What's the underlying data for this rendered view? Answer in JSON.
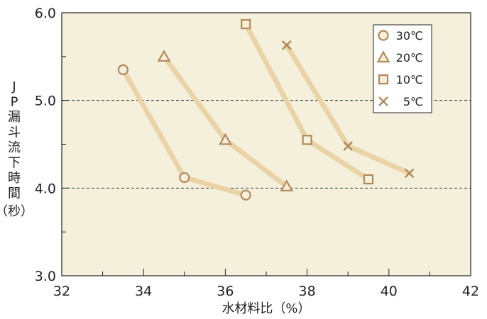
{
  "chart_data": {
    "type": "line",
    "xlabel": "水材料比（%）",
    "ylabel_vertical": "JP漏斗流下時間",
    "ylabel_unit": "（秒）",
    "xlim": [
      32,
      42
    ],
    "ylim": [
      3.0,
      6.0
    ],
    "x_ticks": [
      "32",
      "34",
      "36",
      "38",
      "40",
      "42"
    ],
    "y_ticks": [
      "3.0",
      "4.0",
      "5.0",
      "6.0"
    ],
    "grid": "dashed horizontal lines at 4.0 and 5.0",
    "legend_position": "top-right",
    "colors": {
      "plot_background": "#f5f0dc",
      "line": "#ead3a6",
      "marker": "#b08a5c",
      "axis": "#222222"
    },
    "series": [
      {
        "name": "30℃",
        "marker": "circle",
        "points": [
          [
            33.5,
            5.35
          ],
          [
            35.0,
            4.12
          ],
          [
            36.5,
            3.92
          ]
        ]
      },
      {
        "name": "20℃",
        "marker": "triangle",
        "points": [
          [
            34.5,
            5.5
          ],
          [
            36.0,
            4.55
          ],
          [
            37.5,
            4.02
          ]
        ]
      },
      {
        "name": "10℃",
        "marker": "square",
        "points": [
          [
            36.5,
            5.87
          ],
          [
            38.0,
            4.55
          ],
          [
            39.5,
            4.1
          ]
        ]
      },
      {
        "name": "5℃",
        "marker": "cross",
        "points": [
          [
            37.5,
            5.63
          ],
          [
            39.0,
            4.48
          ],
          [
            40.5,
            4.17
          ]
        ]
      }
    ]
  }
}
